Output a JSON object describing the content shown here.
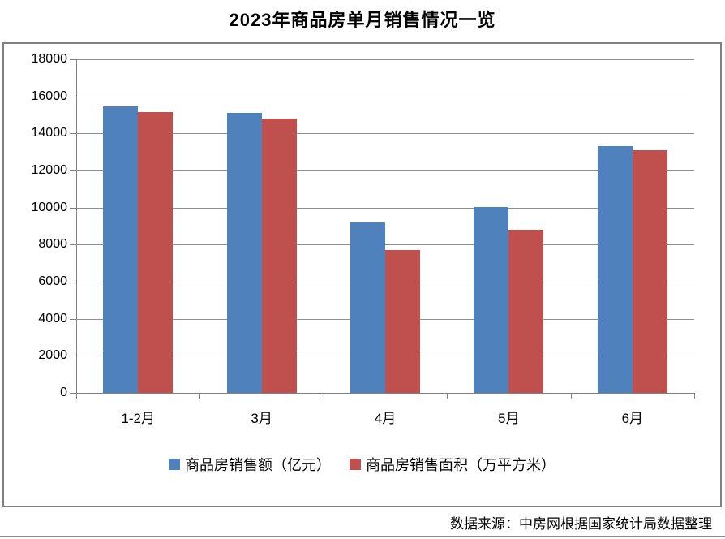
{
  "title": "2023年商品房单月销售情况一览",
  "footer": "数据来源：中房网根据国家统计局数据整理",
  "colors": {
    "series_sales": "#4F81BD",
    "series_area": "#C0504D",
    "gridline": "#909090",
    "axis": "#808080",
    "chart_border": "#808080"
  },
  "chart_data": {
    "type": "bar",
    "title": "2023年商品房单月销售情况一览",
    "categories": [
      "1-2月",
      "3月",
      "4月",
      "5月",
      "6月"
    ],
    "series": [
      {
        "name": "商品房销售额（亿元）",
        "color": "#4F81BD",
        "values": [
          15449,
          15096,
          9205,
          10037,
          13305
        ]
      },
      {
        "name": "商品房销售面积（万平方米）",
        "color": "#C0504D",
        "values": [
          15133,
          14813,
          7690,
          8804,
          13075
        ]
      }
    ],
    "xlabel": "",
    "ylabel": "",
    "ylim": [
      0,
      18000
    ],
    "ytick_interval": 2000,
    "yticks": [
      0,
      2000,
      4000,
      6000,
      8000,
      10000,
      12000,
      14000,
      16000,
      18000
    ],
    "grid": true,
    "legend_position": "bottom",
    "source_note": "数据来源：中房网根据国家统计局数据整理"
  }
}
